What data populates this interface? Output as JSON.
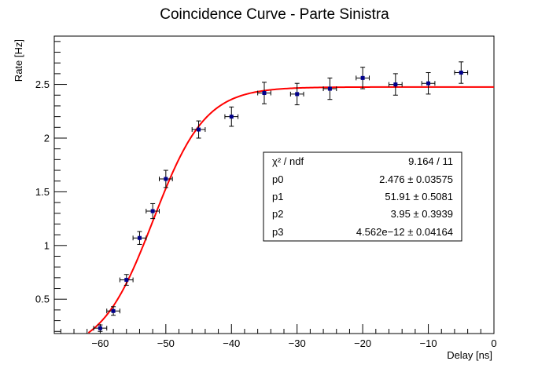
{
  "chart_data": {
    "type": "scatter",
    "title": "Coincidence Curve - Parte Sinistra",
    "xlabel": "Delay [ns]",
    "ylabel": "Rate [Hz]",
    "xlim": [
      -67,
      0
    ],
    "ylim": [
      0.18,
      2.95
    ],
    "xticks": [
      -60,
      -50,
      -40,
      -30,
      -20,
      -10,
      0
    ],
    "xtick_labels": [
      "−60",
      "−50",
      "−40",
      "−30",
      "−20",
      "−10",
      "0"
    ],
    "yticks": [
      0.5,
      1,
      1.5,
      2,
      2.5
    ],
    "ytick_labels": [
      "0.5",
      "1",
      "1.5",
      "2",
      "2.5"
    ],
    "grid": false,
    "series": [
      {
        "marker_color": "#00008b",
        "x": [
          -60,
          -58,
          -56,
          -54,
          -52,
          -50,
          -45,
          -40,
          -35,
          -30,
          -25,
          -20,
          -15,
          -10,
          -5
        ],
        "y": [
          0.23,
          0.39,
          0.68,
          1.07,
          1.32,
          1.62,
          2.08,
          2.2,
          2.42,
          2.41,
          2.46,
          2.56,
          2.5,
          2.51,
          2.61
        ],
        "xerr": [
          1,
          1,
          1,
          1,
          1,
          1,
          1,
          1,
          1,
          1,
          1,
          1,
          1,
          1,
          1
        ],
        "yerr": [
          0.03,
          0.04,
          0.05,
          0.06,
          0.07,
          0.08,
          0.08,
          0.09,
          0.1,
          0.1,
          0.1,
          0.1,
          0.1,
          0.1,
          0.1
        ]
      }
    ],
    "fit": {
      "color": "#ff0000",
      "params": {
        "p0": 2.476,
        "p1": 51.91,
        "p2": 3.95,
        "p3": 0
      }
    },
    "stats_box": {
      "rows": [
        {
          "label": "χ² / ndf",
          "value": "9.164 / 11"
        },
        {
          "label": "p0",
          "value": "2.476 ± 0.03575"
        },
        {
          "label": "p1",
          "value": "51.91 ± 0.5081"
        },
        {
          "label": "p2",
          "value": "3.95 ± 0.3939"
        },
        {
          "label": "p3",
          "value": "4.562e−12 ± 0.04164"
        }
      ]
    }
  }
}
